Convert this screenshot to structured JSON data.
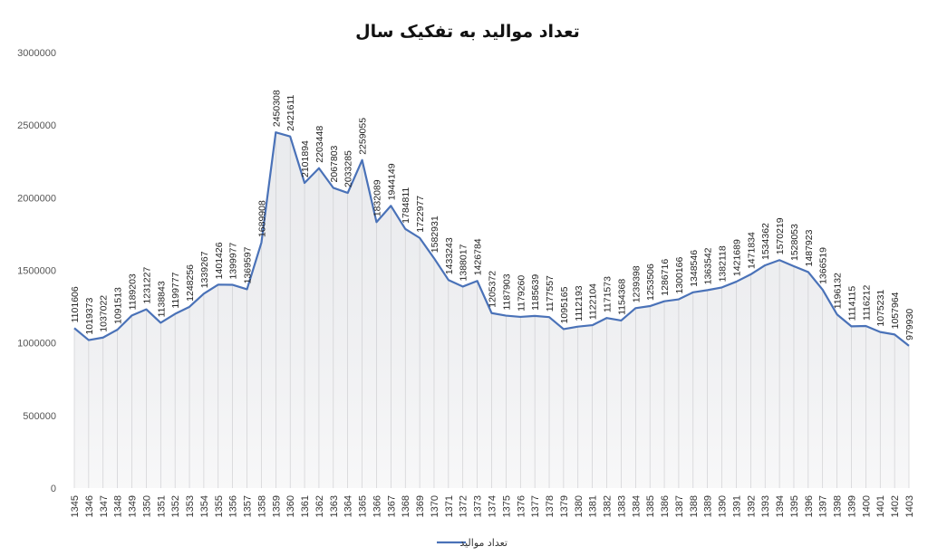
{
  "chart_data": {
    "type": "area",
    "title": "تعداد موالید به تفکیک سال",
    "xlabel": "",
    "ylabel": "",
    "ylim": [
      0,
      3000000
    ],
    "yticks": [
      "0",
      "500000",
      "1000000",
      "1500000",
      "2000000",
      "2500000",
      "3000000"
    ],
    "grid": false,
    "legend_position": "bottom",
    "line_color": "#4a72b8",
    "categories": [
      "1345",
      "1346",
      "1347",
      "1348",
      "1349",
      "1350",
      "1351",
      "1352",
      "1353",
      "1354",
      "1355",
      "1356",
      "1357",
      "1358",
      "1359",
      "1360",
      "1361",
      "1362",
      "1363",
      "1364",
      "1365",
      "1366",
      "1367",
      "1368",
      "1369",
      "1370",
      "1371",
      "1372",
      "1373",
      "1374",
      "1375",
      "1376",
      "1377",
      "1378",
      "1379",
      "1380",
      "1381",
      "1382",
      "1383",
      "1384",
      "1385",
      "1386",
      "1387",
      "1388",
      "1389",
      "1390",
      "1391",
      "1392",
      "1393",
      "1394",
      "1395",
      "1396",
      "1397",
      "1398",
      "1399",
      "1400",
      "1401",
      "1402",
      "1403"
    ],
    "series": [
      {
        "name": "تعداد موالید",
        "values": [
          1101606,
          1019373,
          1037022,
          1091513,
          1189203,
          1231227,
          1138843,
          1199777,
          1248256,
          1339267,
          1401426,
          1399977,
          1369597,
          1689908,
          2450308,
          2421611,
          2101894,
          2203448,
          2067803,
          2033285,
          2259055,
          1832089,
          1944149,
          1784811,
          1722977,
          1582931,
          1433243,
          1388017,
          1426784,
          1205372,
          1187903,
          1179260,
          1185639,
          1177557,
          1095165,
          1112193,
          1122104,
          1171573,
          1154368,
          1239398,
          1253506,
          1286716,
          1300166,
          1348546,
          1363542,
          1382118,
          1421689,
          1471834,
          1534362,
          1570219,
          1528053,
          1487923,
          1366519,
          1196132,
          1114115,
          1116212,
          1075231,
          1057964,
          979930
        ]
      }
    ]
  }
}
